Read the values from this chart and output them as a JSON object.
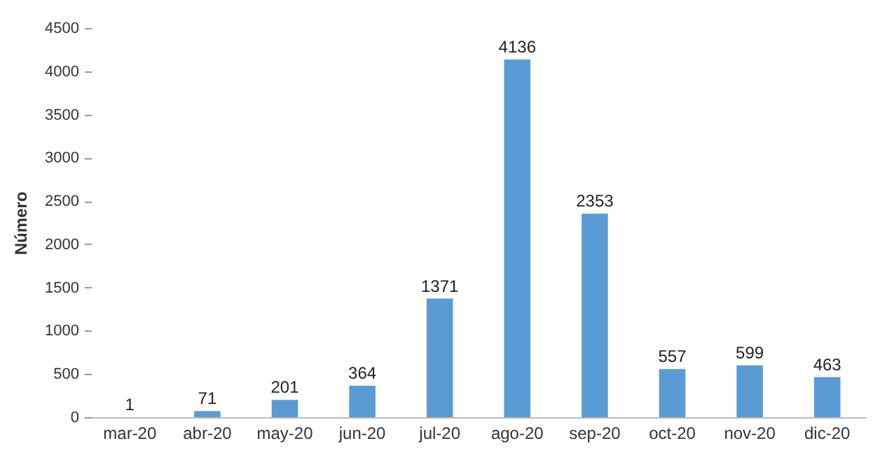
{
  "chart_data": {
    "type": "bar",
    "ylabel": "Número",
    "categories": [
      "mar-20",
      "abr-20",
      "may-20",
      "jun-20",
      "jul-20",
      "ago-20",
      "sep-20",
      "oct-20",
      "nov-20",
      "dic-20"
    ],
    "values": [
      1,
      71,
      201,
      364,
      1371,
      4136,
      2353,
      557,
      599,
      463
    ],
    "color": "#5b9bd5",
    "ylim": [
      0,
      4500
    ],
    "yticks": [
      0,
      500,
      1000,
      1500,
      2000,
      2500,
      3000,
      3500,
      4000,
      4500
    ],
    "data_labels": true,
    "grid": false
  }
}
